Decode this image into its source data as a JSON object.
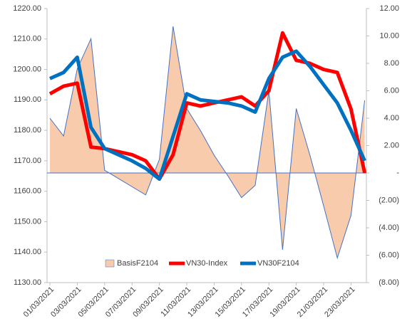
{
  "chart_data": {
    "type": "combo",
    "categories": [
      "01/03/2021",
      null,
      "03/03/2021",
      null,
      "05/03/2021",
      null,
      "07/03/2021",
      null,
      "09/03/2021",
      null,
      "11/03/2021",
      null,
      "13/03/2021",
      null,
      "15/03/2021",
      null,
      "17/03/2021",
      null,
      "19/03/2021",
      null,
      "21/03/2021",
      null,
      "23/03/2021",
      null
    ],
    "series": [
      {
        "name": "BasisF2104",
        "type": "area",
        "axis": "y2",
        "color": "#f8cbad",
        "edge": "#4472c4",
        "values": [
          4.0,
          2.7,
          7.6,
          9.8,
          0.2,
          -0.4,
          -1.0,
          -1.6,
          1.0,
          10.7,
          4.7,
          3.1,
          1.3,
          -0.2,
          -1.8,
          -0.9,
          6.0,
          -5.6,
          4.7,
          1.3,
          -2.4,
          -6.2,
          -3.1,
          5.3
        ]
      },
      {
        "name": "VN30-Index",
        "type": "line",
        "axis": "y",
        "color": "#ff0000",
        "values": [
          1192,
          1194.5,
          1195.5,
          1174.5,
          1174,
          1173,
          1172,
          1170,
          1164,
          1172,
          1189,
          1188,
          1189,
          1190,
          1191,
          1188,
          1193,
          1212,
          1203,
          1202,
          1200,
          1199,
          1187,
          1166
        ]
      },
      {
        "name": "VN30F2104",
        "type": "line",
        "axis": "y",
        "color": "#0070c0",
        "values": [
          1197,
          1199,
          1204,
          1181,
          1174,
          1172,
          1170,
          1167.5,
          1164,
          1178,
          1192,
          1190,
          1189.5,
          1189,
          1188,
          1186,
          1197,
          1204,
          1206,
          1201,
          1195,
          1189,
          1180,
          1170
        ]
      }
    ],
    "ylim": [
      1130,
      1220
    ],
    "yticks": [
      {
        "value": 1130,
        "label": "1130.00"
      },
      {
        "value": 1140,
        "label": "1140.00"
      },
      {
        "value": 1150,
        "label": "1150.00"
      },
      {
        "value": 1160,
        "label": "1160.00"
      },
      {
        "value": 1170,
        "label": "1170.00"
      },
      {
        "value": 1180,
        "label": "1180.00"
      },
      {
        "value": 1190,
        "label": "1190.00"
      },
      {
        "value": 1200,
        "label": "1200.00"
      },
      {
        "value": 1210,
        "label": "1210.00"
      },
      {
        "value": 1220,
        "label": "1220.00"
      }
    ],
    "y2lim": [
      -8,
      12
    ],
    "y2ticks": [
      {
        "value": -8,
        "label": "(8.00)"
      },
      {
        "value": -6,
        "label": "(6.00)"
      },
      {
        "value": -4,
        "label": "(4.00)"
      },
      {
        "value": -2,
        "label": "(2.00)"
      },
      {
        "value": 0,
        "label": "-"
      },
      {
        "value": 2,
        "label": "2.00"
      },
      {
        "value": 4,
        "label": "4.00"
      },
      {
        "value": 6,
        "label": "6.00"
      },
      {
        "value": 8,
        "label": "8.00"
      },
      {
        "value": 10,
        "label": "10.00"
      },
      {
        "value": 12,
        "label": "12.00"
      }
    ],
    "legend": "bottom",
    "grid": false
  }
}
